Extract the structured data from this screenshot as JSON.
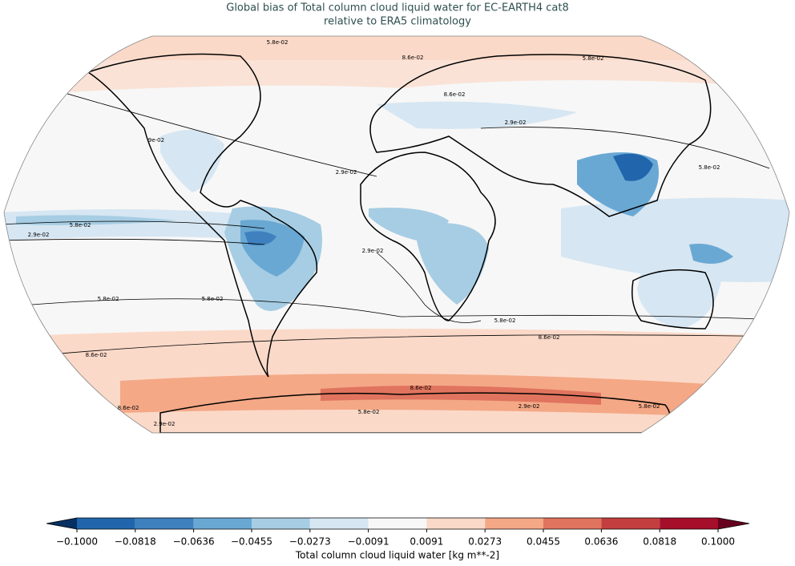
{
  "chart_data": {
    "type": "map",
    "title": "Global bias of Total column cloud liquid water for EC-EARTH4 cat8",
    "subtitle": "relative to ERA5 climatology",
    "contour_labels": [
      "5.8e-02",
      "8.6e-02",
      "5.8e-02",
      "8.6e-02",
      "2.9e-02",
      "9e-02",
      "2.9e-02",
      "5.8e-02",
      "5.8e-02",
      "2.9e-02",
      "2.9e-02",
      "5.8e-02",
      "5.8e-02",
      "5.8e-02",
      "8.6e-02",
      "8.6e-02",
      "8.6e-02",
      "8.6e-02",
      "5.8e-02",
      "2.9e-02",
      "2.9e-02",
      "5.8e-02"
    ],
    "colorbar": {
      "label": "Total column cloud liquid water [kg m**-2]",
      "ticks": [
        {
          "value": -0.1,
          "label": "−0.1000"
        },
        {
          "value": -0.0818,
          "label": "−0.0818"
        },
        {
          "value": -0.0636,
          "label": "−0.0636"
        },
        {
          "value": -0.0455,
          "label": "−0.0455"
        },
        {
          "value": -0.0273,
          "label": "−0.0273"
        },
        {
          "value": -0.0091,
          "label": "−0.0091"
        },
        {
          "value": 0.0091,
          "label": "0.0091"
        },
        {
          "value": 0.0273,
          "label": "0.0273"
        },
        {
          "value": 0.0455,
          "label": "0.0455"
        },
        {
          "value": 0.0636,
          "label": "0.0636"
        },
        {
          "value": 0.0818,
          "label": "0.0818"
        },
        {
          "value": 0.1,
          "label": "0.1000"
        }
      ],
      "colors": [
        "#2166ac",
        "#3f80bf",
        "#6aa8d4",
        "#a6cde3",
        "#d6e6f2",
        "#f7f7f7",
        "#fbd9c8",
        "#f4a886",
        "#e0745e",
        "#c33e3e",
        "#a50f2a"
      ],
      "under_color": "#053061",
      "over_color": "#67001f"
    }
  }
}
